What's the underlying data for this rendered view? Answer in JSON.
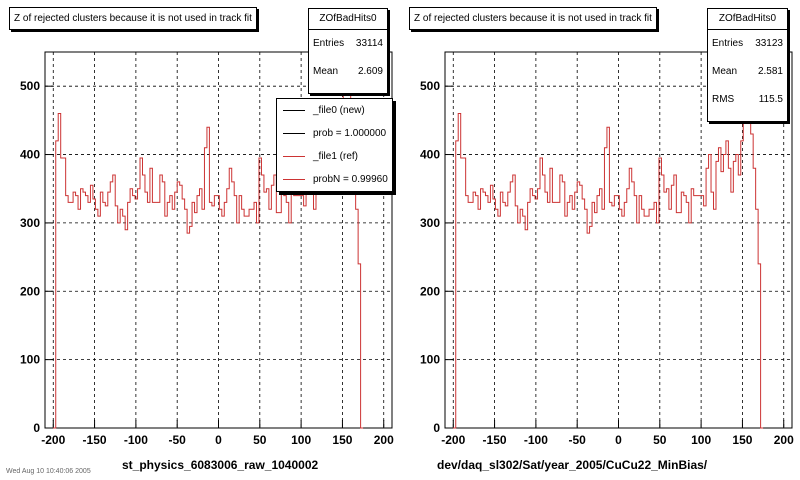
{
  "footer_text": "Wed Aug 10 10:40:06 2005",
  "colors": {
    "ref_line": "#cc3333",
    "new_line": "#000000",
    "grid": "#000000"
  },
  "panels": [
    {
      "title": "Z of rejected clusters  because it is not used in track fit",
      "stats": {
        "name": "ZOfBadHits0",
        "rows": [
          {
            "label": "Entries",
            "value": "33114"
          },
          {
            "label": "Mean",
            "value": "2.609"
          }
        ]
      },
      "legend": [
        {
          "label": "_file0 (new)",
          "color": "#000000"
        },
        {
          "label": "prob = 1.000000",
          "color": "#000000"
        },
        {
          "label": "_file1 (ref)",
          "color": "#cc3333"
        },
        {
          "label": "probN = 0.99960",
          "color": "#cc3333"
        }
      ],
      "xtitle": "st_physics_6083006_raw_1040002"
    },
    {
      "title": "Z of rejected clusters  because it is not used in track fit",
      "stats": {
        "name": "ZOfBadHits0",
        "rows": [
          {
            "label": "Entries",
            "value": "33123"
          },
          {
            "label": "Mean",
            "value": "2.581"
          },
          {
            "label": "RMS",
            "value": "115.5"
          }
        ]
      },
      "legend": [],
      "xtitle": "dev/daq_sl302/Sat/year_2005/CuCu22_MinBias/"
    }
  ],
  "chart_data": [
    {
      "type": "bar",
      "title": "Z of rejected clusters  because it is not used in track fit",
      "xlabel": "st_physics_6083006_raw_1040002",
      "ylabel": "",
      "xlim": [
        -210,
        210
      ],
      "ylim": [
        0,
        550
      ],
      "grid": true,
      "x_ticks": [
        -200,
        -150,
        -100,
        -50,
        0,
        50,
        100,
        150,
        200
      ],
      "y_ticks": [
        0,
        100,
        200,
        300,
        400,
        500
      ],
      "bin_edges_start": -200,
      "bin_width": 3,
      "series": [
        {
          "name": "_file1 (ref)",
          "color": "#cc3333",
          "values": [
            0,
            420,
            460,
            395,
            395,
            340,
            330,
            330,
            345,
            340,
            320,
            350,
            345,
            340,
            330,
            355,
            335,
            320,
            310,
            345,
            330,
            325,
            345,
            360,
            370,
            325,
            300,
            320,
            310,
            290,
            330,
            350,
            340,
            335,
            350,
            395,
            370,
            345,
            330,
            380,
            330,
            330,
            330,
            370,
            360,
            310,
            330,
            340,
            320,
            345,
            360,
            355,
            335,
            320,
            285,
            295,
            330,
            315,
            340,
            350,
            320,
            410,
            440,
            330,
            325,
            340,
            340,
            320,
            310,
            330,
            350,
            380,
            360,
            340,
            300,
            340,
            320,
            310,
            310,
            320,
            320,
            330,
            300,
            395,
            370,
            345,
            350,
            320,
            355,
            370,
            315,
            315,
            345,
            340,
            330,
            300,
            350,
            340,
            340,
            340,
            340,
            325,
            380,
            400,
            345,
            320,
            390,
            410,
            375,
            400,
            420,
            380,
            345,
            390,
            400,
            370,
            420,
            500,
            530,
            540,
            430,
            380,
            320,
            240,
            0
          ]
        }
      ]
    },
    {
      "type": "bar",
      "title": "Z of rejected clusters  because it is not used in track fit",
      "xlabel": "dev/daq_sl302/Sat/year_2005/CuCu22_MinBias/",
      "ylabel": "",
      "xlim": [
        -210,
        210
      ],
      "ylim": [
        0,
        550
      ],
      "grid": true,
      "x_ticks": [
        -200,
        -150,
        -100,
        -50,
        0,
        50,
        100,
        150,
        200
      ],
      "y_ticks": [
        0,
        100,
        200,
        300,
        400,
        500
      ],
      "bin_edges_start": -200,
      "bin_width": 3,
      "series": [
        {
          "name": "",
          "color": "#cc3333",
          "values": [
            0,
            420,
            460,
            395,
            395,
            340,
            330,
            330,
            345,
            340,
            320,
            350,
            345,
            340,
            330,
            355,
            335,
            320,
            310,
            345,
            330,
            325,
            345,
            360,
            370,
            325,
            300,
            320,
            310,
            290,
            330,
            350,
            340,
            335,
            350,
            395,
            370,
            345,
            330,
            380,
            330,
            330,
            330,
            370,
            360,
            310,
            330,
            340,
            320,
            345,
            360,
            355,
            335,
            320,
            285,
            295,
            330,
            315,
            340,
            350,
            320,
            410,
            440,
            330,
            325,
            340,
            340,
            320,
            310,
            330,
            350,
            380,
            360,
            340,
            300,
            340,
            320,
            310,
            310,
            320,
            320,
            330,
            300,
            395,
            370,
            345,
            350,
            320,
            355,
            370,
            315,
            315,
            345,
            340,
            330,
            300,
            350,
            340,
            340,
            340,
            340,
            325,
            380,
            400,
            345,
            320,
            390,
            410,
            375,
            400,
            420,
            380,
            345,
            390,
            400,
            370,
            420,
            500,
            530,
            540,
            430,
            380,
            320,
            240,
            0
          ]
        }
      ]
    }
  ]
}
